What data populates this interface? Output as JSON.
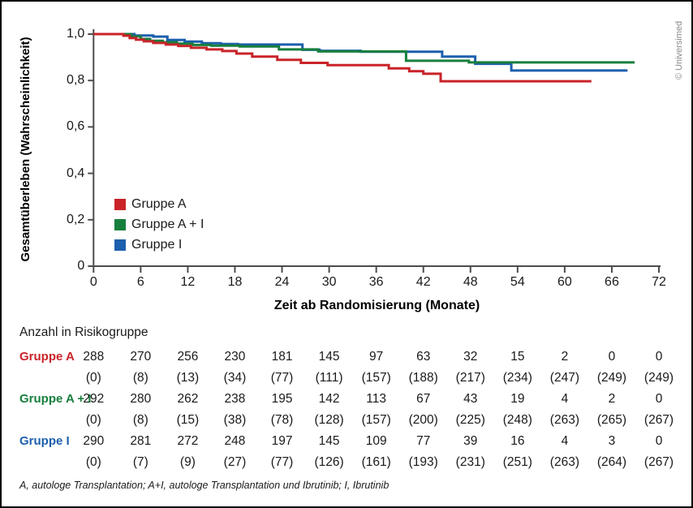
{
  "copyright": "© Universimed",
  "chart_data": {
    "type": "line",
    "subtype": "kaplan-meier-step",
    "xlabel": "Zeit ab Randomisierung (Monate)",
    "ylabel": "Gesamtüberleben (Wahrscheinlichkeit)",
    "xlim": [
      0,
      72
    ],
    "ylim": [
      0,
      1
    ],
    "x_ticks": [
      0,
      6,
      12,
      18,
      24,
      30,
      36,
      42,
      48,
      54,
      60,
      66,
      72
    ],
    "y_ticks": [
      {
        "label": "1,0",
        "value": 1.0
      },
      {
        "label": "0,8",
        "value": 0.8
      },
      {
        "label": "0,6",
        "value": 0.6
      },
      {
        "label": "0,4",
        "value": 0.4
      },
      {
        "label": "0,2",
        "value": 0.2
      },
      {
        "label": "0",
        "value": 0.0
      }
    ],
    "grid": false,
    "legend_position": "inside-left-middle",
    "series": [
      {
        "name": "Gruppe A",
        "color": "#c92328",
        "points": [
          [
            0,
            1.0
          ],
          [
            3.8,
            0.993
          ],
          [
            4.6,
            0.983
          ],
          [
            5.4,
            0.976
          ],
          [
            6.4,
            0.969
          ],
          [
            7.6,
            0.962
          ],
          [
            9.2,
            0.955
          ],
          [
            10.8,
            0.949
          ],
          [
            12.4,
            0.941
          ],
          [
            14.4,
            0.934
          ],
          [
            16.4,
            0.927
          ],
          [
            18.2,
            0.916
          ],
          [
            20.2,
            0.903
          ],
          [
            23.4,
            0.889
          ],
          [
            26.4,
            0.876
          ],
          [
            29.8,
            0.866
          ],
          [
            37.6,
            0.852
          ],
          [
            40.2,
            0.84
          ],
          [
            42.0,
            0.829
          ],
          [
            44.2,
            0.797
          ],
          [
            63.4,
            0.797
          ]
        ]
      },
      {
        "name": "Gruppe A + I",
        "color": "#177f3d",
        "points": [
          [
            0,
            1.0
          ],
          [
            4.8,
            0.99
          ],
          [
            6.0,
            0.979
          ],
          [
            7.2,
            0.971
          ],
          [
            8.8,
            0.965
          ],
          [
            10.6,
            0.959
          ],
          [
            12.6,
            0.953
          ],
          [
            15.0,
            0.95
          ],
          [
            18.6,
            0.947
          ],
          [
            23.6,
            0.934
          ],
          [
            28.6,
            0.925
          ],
          [
            39.8,
            0.885
          ],
          [
            47.8,
            0.878
          ],
          [
            68.9,
            0.878
          ]
        ]
      },
      {
        "name": "Gruppe I",
        "color": "#1c5fad",
        "points": [
          [
            0,
            1.0
          ],
          [
            5.2,
            0.994
          ],
          [
            7.6,
            0.989
          ],
          [
            9.4,
            0.975
          ],
          [
            11.6,
            0.968
          ],
          [
            13.8,
            0.961
          ],
          [
            16.2,
            0.957
          ],
          [
            18.4,
            0.955
          ],
          [
            26.6,
            0.932
          ],
          [
            28.8,
            0.928
          ],
          [
            34.0,
            0.924
          ],
          [
            44.4,
            0.903
          ],
          [
            48.6,
            0.872
          ],
          [
            53.2,
            0.843
          ],
          [
            68.0,
            0.843
          ]
        ]
      }
    ]
  },
  "legend": {
    "items": [
      {
        "label": "Gruppe A",
        "color": "#c92328"
      },
      {
        "label": "Gruppe A + I",
        "color": "#177f3d"
      },
      {
        "label": "Gruppe I",
        "color": "#1c5fad"
      }
    ]
  },
  "risk_table": {
    "title": "Anzahl in Risikogruppe",
    "groups": [
      {
        "label": "Gruppe A",
        "color": "#c92328",
        "at_risk": [
          "288",
          "270",
          "256",
          "230",
          "181",
          "145",
          "97",
          "63",
          "32",
          "15",
          "2",
          "0",
          "0"
        ],
        "events": [
          "(0)",
          "(8)",
          "(13)",
          "(34)",
          "(77)",
          "(111)",
          "(157)",
          "(188)",
          "(217)",
          "(234)",
          "(247)",
          "(249)",
          "(249)"
        ]
      },
      {
        "label": "Gruppe A + I",
        "color": "#177f3d",
        "at_risk": [
          "292",
          "280",
          "262",
          "238",
          "195",
          "142",
          "113",
          "67",
          "43",
          "19",
          "4",
          "2",
          "0"
        ],
        "events": [
          "(0)",
          "(8)",
          "(15)",
          "(38)",
          "(78)",
          "(128)",
          "(157)",
          "(200)",
          "(225)",
          "(248)",
          "(263)",
          "(265)",
          "(267)"
        ]
      },
      {
        "label": "Gruppe I",
        "color": "#1c5fad",
        "at_risk": [
          "290",
          "281",
          "272",
          "248",
          "197",
          "145",
          "109",
          "77",
          "39",
          "16",
          "4",
          "3",
          "0"
        ],
        "events": [
          "(0)",
          "(7)",
          "(9)",
          "(27)",
          "(77)",
          "(126)",
          "(161)",
          "(193)",
          "(231)",
          "(251)",
          "(263)",
          "(264)",
          "(267)"
        ]
      }
    ]
  },
  "footnote": "A, autologe Transplantation; A+I, autologe Transplantation und Ibrutinib; I, Ibrutinib"
}
